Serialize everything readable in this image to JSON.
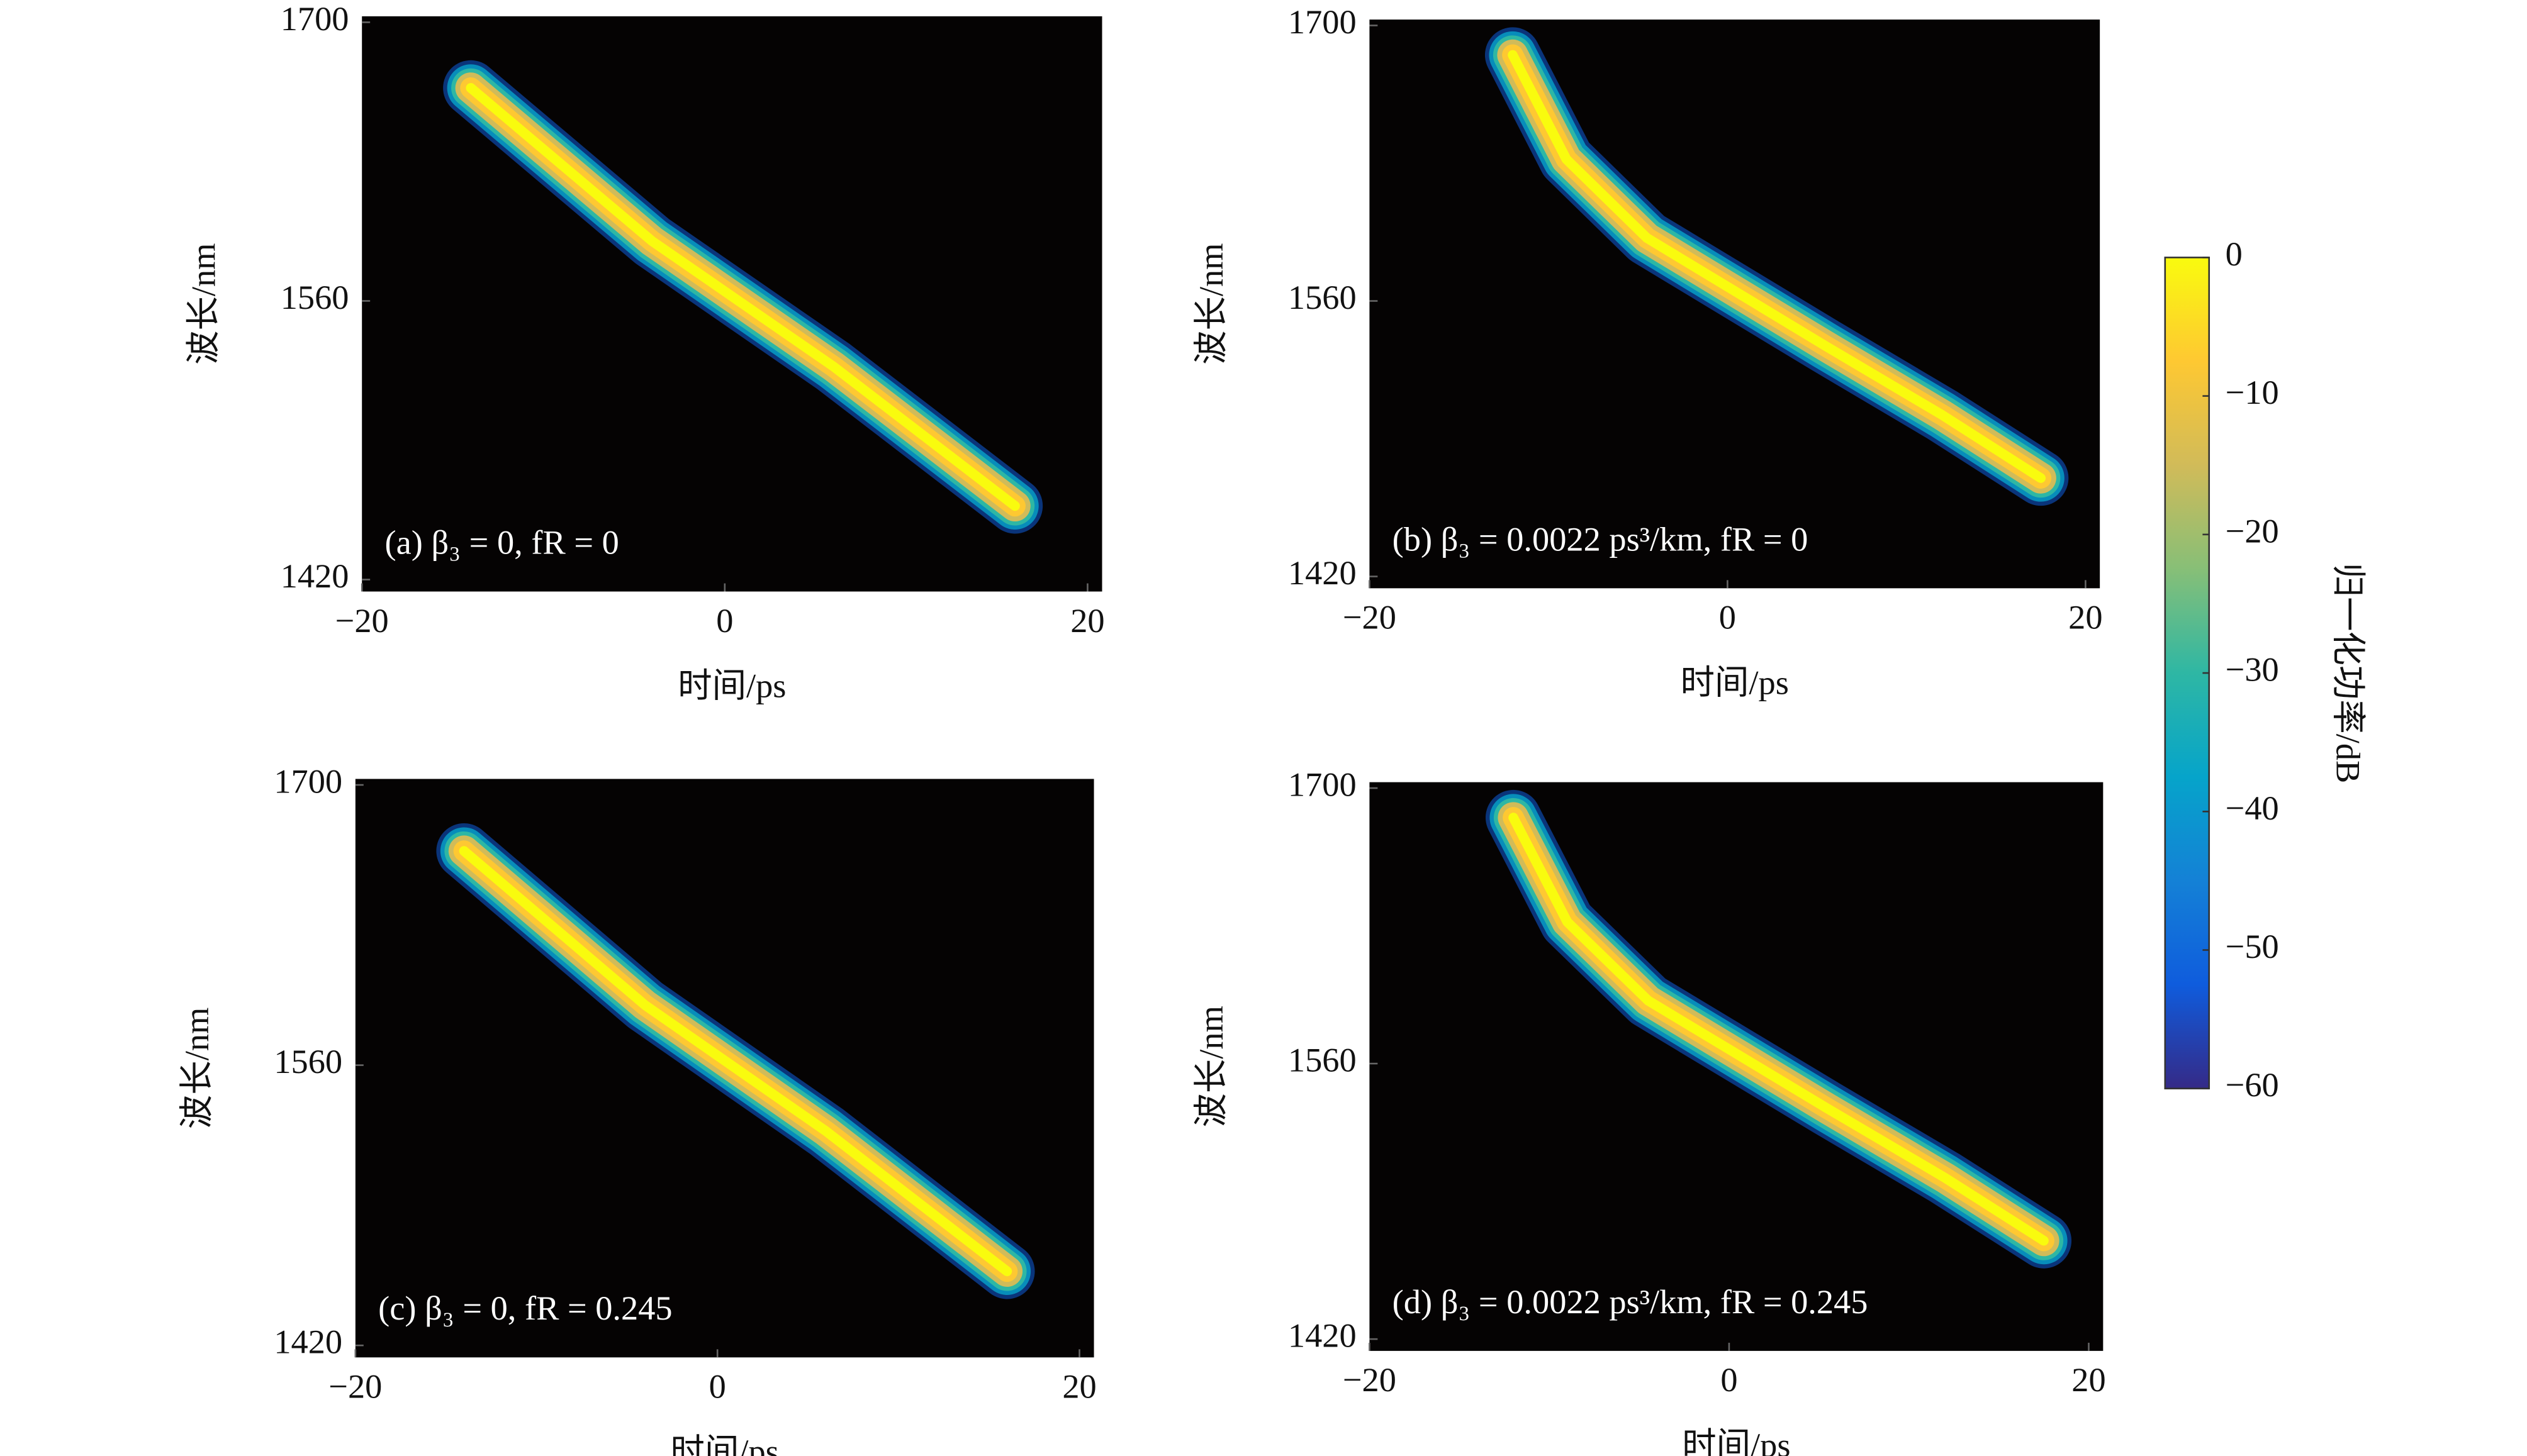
{
  "chart_data": [
    {
      "type": "heatmap",
      "annotation": "(a) β₃ = 0, fR = 0",
      "xlabel": "时间/ps",
      "ylabel": "波长/nm",
      "xlim": [
        -20,
        20.8
      ],
      "ylim": [
        1414,
        1703
      ],
      "xticks": [
        {
          "value": -20,
          "label": "−20"
        },
        0,
        20
      ],
      "yticks": [
        1420,
        1560,
        1700
      ],
      "background": "#050303",
      "ridge": {
        "x": [
          -14,
          -4,
          6,
          16
        ],
        "y": [
          1667,
          1590,
          1527,
          1457
        ]
      }
    },
    {
      "type": "heatmap",
      "annotation": "(b) β₃ = 0.0022 ps³/km, fR = 0",
      "xlabel": "时间/ps",
      "ylabel": "波长/nm",
      "xlim": [
        -20,
        20.8
      ],
      "ylim": [
        1414,
        1703
      ],
      "xticks": [
        {
          "value": -20,
          "label": "−20"
        },
        0,
        20
      ],
      "yticks": [
        1420,
        1560,
        1700
      ],
      "background": "#050303",
      "ridge": {
        "x": [
          -12,
          -9,
          -4.5,
          5.5,
          12,
          17.5
        ],
        "y": [
          1685,
          1632,
          1592,
          1537,
          1502,
          1470
        ]
      }
    },
    {
      "type": "heatmap",
      "annotation": "(c) β₃ = 0, fR = 0.245",
      "xlabel": "时间/ps",
      "ylabel": "波长/nm",
      "xlim": [
        -20,
        20.8
      ],
      "ylim": [
        1414,
        1703
      ],
      "xticks": [
        {
          "value": -20,
          "label": "−20"
        },
        0,
        20
      ],
      "yticks": [
        1420,
        1560,
        1700
      ],
      "background": "#050303",
      "ridge": {
        "x": [
          -14,
          -4,
          6,
          16
        ],
        "y": [
          1667,
          1590,
          1527,
          1457
        ]
      }
    },
    {
      "type": "heatmap",
      "annotation": "(d) β₃ = 0.0022 ps³/km, fR = 0.245",
      "xlabel": "时间/ps",
      "ylabel": "波长/nm",
      "xlim": [
        -20,
        20.8
      ],
      "ylim": [
        1414,
        1703
      ],
      "xticks": [
        {
          "value": -20,
          "label": "−20"
        },
        0,
        20
      ],
      "yticks": [
        1420,
        1560,
        1700
      ],
      "background": "#050303",
      "ridge": {
        "x": [
          -12,
          -9,
          -4.5,
          5.5,
          12,
          17.5
        ],
        "y": [
          1685,
          1632,
          1592,
          1537,
          1502,
          1470
        ]
      }
    }
  ],
  "colorbar": {
    "label": "归一化功率/dB",
    "clim": [
      -60,
      0
    ],
    "ticks": [
      0,
      {
        "value": -10,
        "label": "−10"
      },
      {
        "value": -20,
        "label": "−20"
      },
      {
        "value": -30,
        "label": "−30"
      },
      {
        "value": -40,
        "label": "−40"
      },
      {
        "value": -50,
        "label": "−50"
      },
      {
        "value": -60,
        "label": "−60"
      }
    ],
    "colormap": [
      "#352a87",
      "#0f5cdd",
      "#1481d6",
      "#06a4ca",
      "#2eb7a4",
      "#87bf77",
      "#d1bb59",
      "#fec832",
      "#f9fb0e"
    ]
  }
}
